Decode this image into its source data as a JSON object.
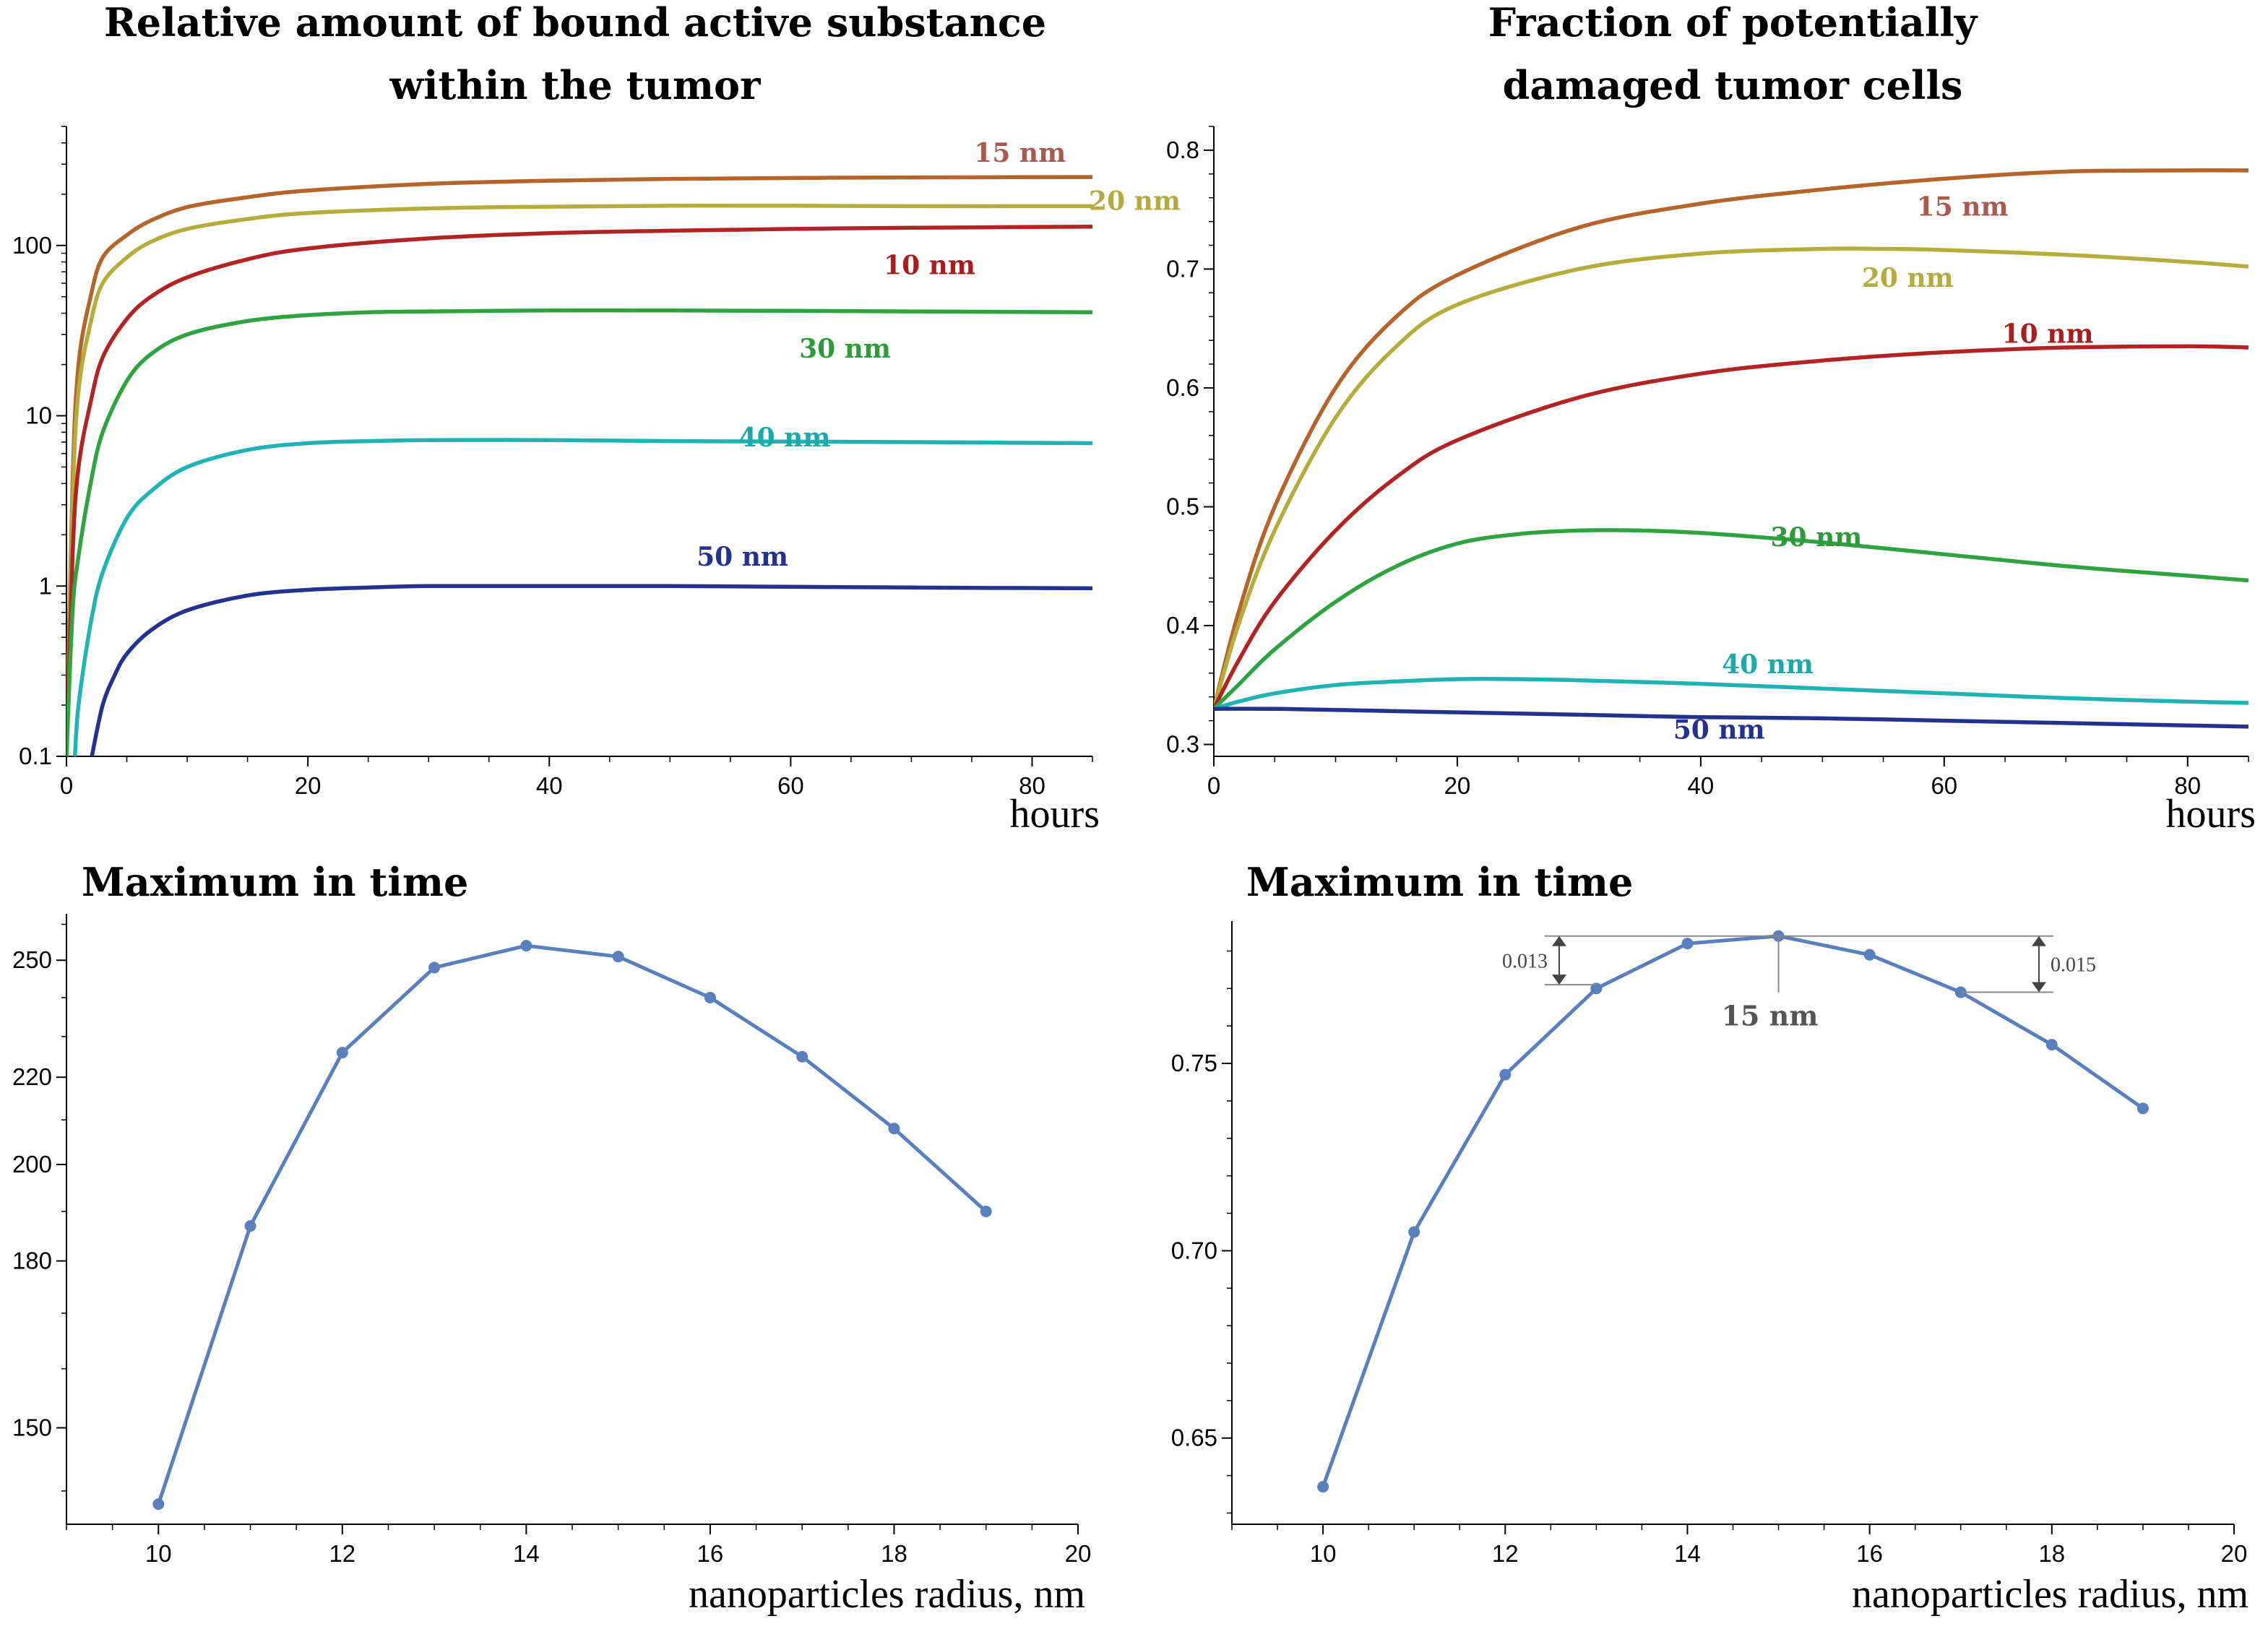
{
  "chart_data": [
    {
      "id": "p1",
      "type": "line",
      "title": [
        "Relative amount of bound active substance",
        "within the tumor"
      ],
      "xlabel": "hours",
      "ylabel": "",
      "yscale": "log",
      "xlim": [
        0,
        85
      ],
      "ylim": [
        0.1,
        500
      ],
      "xticks": [
        {
          "v": 0,
          "label": "0"
        },
        {
          "v": 20,
          "label": "20"
        },
        {
          "v": 40,
          "label": "40"
        },
        {
          "v": 60,
          "label": "60"
        },
        {
          "v": 80,
          "label": "80"
        }
      ],
      "yticks": [
        {
          "v": 0.1,
          "label": "0.1"
        },
        {
          "v": 1,
          "label": "1"
        },
        {
          "v": 10,
          "label": "10"
        },
        {
          "v": 100,
          "label": "100"
        }
      ],
      "series": [
        {
          "name": "15 nm",
          "color": "#b5652b",
          "label_color": "#a85a50",
          "x": [
            0,
            0.5,
            1,
            2,
            3,
            5,
            7,
            10,
            15,
            20,
            30,
            40,
            50,
            60,
            70,
            85
          ],
          "y": [
            0.1,
            4,
            20,
            50,
            85,
            115,
            140,
            168,
            192,
            210,
            230,
            240,
            246,
            249,
            251,
            252
          ],
          "label_x": 79,
          "label_y": 310
        },
        {
          "name": "20 nm",
          "color": "#b4ad3c",
          "label_color": "#b3aa42",
          "x": [
            0,
            0.5,
            1,
            2,
            3,
            5,
            7,
            10,
            15,
            20,
            30,
            40,
            50,
            60,
            70,
            85
          ],
          "y": [
            0.1,
            3,
            14,
            35,
            60,
            85,
            105,
            125,
            143,
            155,
            165,
            169,
            171,
            171,
            170,
            170
          ],
          "label_x": 88.5,
          "label_y": 162
        },
        {
          "name": "10 nm",
          "color": "#b22424",
          "label_color": "#a61e1e",
          "x": [
            0,
            0.5,
            1,
            2,
            3,
            5,
            7,
            10,
            15,
            20,
            30,
            40,
            50,
            60,
            70,
            85
          ],
          "y": [
            0.1,
            1.5,
            5,
            12,
            22,
            37,
            50,
            65,
            83,
            96,
            110,
            118,
            122,
            125,
            127,
            129
          ],
          "label_x": 71.5,
          "label_y": 68
        },
        {
          "name": "30 nm",
          "color": "#2ea340",
          "label_color": "#2e9a3a",
          "x": [
            0,
            0.5,
            1,
            2,
            3,
            5,
            7,
            10,
            15,
            20,
            25,
            30,
            40,
            50,
            60,
            70,
            85
          ],
          "y": [
            0.1,
            0.7,
            1.5,
            4,
            8,
            16,
            23,
            30,
            36,
            39,
            40.5,
            41,
            41.5,
            41.5,
            41.3,
            41,
            40.5
          ],
          "label_x": 64.5,
          "label_y": 22
        },
        {
          "name": "40 nm",
          "color": "#1fb3b3",
          "label_color": "#1fa8a8",
          "x": [
            0.7,
            1,
            2,
            3,
            5,
            7,
            10,
            15,
            20,
            25,
            30,
            40,
            50,
            60,
            70,
            85
          ],
          "y": [
            0.1,
            0.2,
            0.6,
            1.2,
            2.5,
            3.6,
            5,
            6.3,
            6.9,
            7.1,
            7.2,
            7.2,
            7.1,
            7.05,
            7,
            6.9
          ],
          "label_x": 59.5,
          "label_y": 6.6
        },
        {
          "name": "50 nm",
          "color": "#24328f",
          "label_color": "#24328f",
          "x": [
            2.1,
            3,
            4,
            5,
            7,
            10,
            15,
            20,
            25,
            30,
            40,
            50,
            60,
            70,
            85
          ],
          "y": [
            0.1,
            0.2,
            0.3,
            0.4,
            0.55,
            0.72,
            0.88,
            0.95,
            0.98,
            1.0,
            1.0,
            1.0,
            0.99,
            0.98,
            0.97
          ],
          "label_x": 56,
          "label_y": 1.32
        }
      ]
    },
    {
      "id": "p2",
      "type": "line",
      "title": [
        "Fraction of potentially",
        "damaged tumor cells"
      ],
      "xlabel": "hours",
      "ylabel": "",
      "xlim": [
        0,
        85
      ],
      "ylim": [
        0.29,
        0.82
      ],
      "xticks": [
        {
          "v": 0,
          "label": "0"
        },
        {
          "v": 20,
          "label": "20"
        },
        {
          "v": 40,
          "label": "40"
        },
        {
          "v": 60,
          "label": "60"
        },
        {
          "v": 80,
          "label": "80"
        }
      ],
      "yticks": [
        {
          "v": 0.3,
          "label": "0.3"
        },
        {
          "v": 0.4,
          "label": "0.4"
        },
        {
          "v": 0.5,
          "label": "0.5"
        },
        {
          "v": 0.6,
          "label": "0.6"
        },
        {
          "v": 0.7,
          "label": "0.7"
        },
        {
          "v": 0.8,
          "label": "0.8"
        }
      ],
      "series": [
        {
          "name": "15 nm",
          "color": "#b5652b",
          "label_color": "#a85a50",
          "x": [
            0,
            2,
            5,
            10,
            15,
            20,
            30,
            40,
            50,
            60,
            70,
            80,
            85
          ],
          "y": [
            0.33,
            0.41,
            0.5,
            0.6,
            0.66,
            0.695,
            0.735,
            0.755,
            0.767,
            0.776,
            0.782,
            0.783,
            0.783
          ],
          "label_x": 61.5,
          "label_y": 0.745
        },
        {
          "name": "20 nm",
          "color": "#b4ad3c",
          "label_color": "#b3aa42",
          "x": [
            0,
            2,
            5,
            10,
            15,
            20,
            30,
            40,
            50,
            55,
            60,
            70,
            80,
            85
          ],
          "y": [
            0.33,
            0.4,
            0.48,
            0.575,
            0.635,
            0.67,
            0.7,
            0.713,
            0.717,
            0.717,
            0.716,
            0.712,
            0.706,
            0.702
          ],
          "label_x": 57,
          "label_y": 0.685
        },
        {
          "name": "10 nm",
          "color": "#b22424",
          "label_color": "#a61e1e",
          "x": [
            0,
            2,
            5,
            10,
            15,
            20,
            30,
            40,
            50,
            60,
            70,
            80,
            85
          ],
          "y": [
            0.33,
            0.37,
            0.42,
            0.48,
            0.525,
            0.556,
            0.592,
            0.612,
            0.623,
            0.63,
            0.634,
            0.635,
            0.634
          ],
          "label_x": 68.5,
          "label_y": 0.638
        },
        {
          "name": "30 nm",
          "color": "#2ea340",
          "label_color": "#2e9a3a",
          "x": [
            0,
            2,
            5,
            10,
            15,
            20,
            25,
            30,
            35,
            40,
            50,
            60,
            70,
            80,
            85
          ],
          "y": [
            0.33,
            0.35,
            0.38,
            0.42,
            0.45,
            0.469,
            0.477,
            0.48,
            0.48,
            0.478,
            0.47,
            0.46,
            0.45,
            0.442,
            0.438
          ],
          "label_x": 49.5,
          "label_y": 0.467
        },
        {
          "name": "40 nm",
          "color": "#1fb3b3",
          "label_color": "#1fa8a8",
          "x": [
            0,
            2,
            5,
            10,
            15,
            20,
            25,
            30,
            40,
            50,
            60,
            70,
            80,
            85
          ],
          "y": [
            0.33,
            0.336,
            0.343,
            0.35,
            0.353,
            0.355,
            0.355,
            0.354,
            0.351,
            0.347,
            0.343,
            0.339,
            0.336,
            0.335
          ],
          "label_x": 45.5,
          "label_y": 0.36
        },
        {
          "name": "50 nm",
          "color": "#24328f",
          "label_color": "#24328f",
          "x": [
            0,
            5,
            10,
            20,
            30,
            40,
            50,
            60,
            70,
            80,
            85
          ],
          "y": [
            0.33,
            0.33,
            0.329,
            0.327,
            0.325,
            0.323,
            0.322,
            0.32,
            0.318,
            0.316,
            0.315
          ],
          "label_x": 41.5,
          "label_y": 0.305
        }
      ]
    },
    {
      "id": "p3",
      "type": "line",
      "title": [
        "Maximum in time"
      ],
      "title_align": "left",
      "xlabel": "nanoparticles radius, nm",
      "ylabel": "",
      "yscale": "log",
      "xlim": [
        9,
        20
      ],
      "ylim": [
        135,
        263
      ],
      "xticks": [
        {
          "v": 10,
          "label": "10"
        },
        {
          "v": 12,
          "label": "12"
        },
        {
          "v": 14,
          "label": "14"
        },
        {
          "v": 16,
          "label": "16"
        },
        {
          "v": 18,
          "label": "18"
        },
        {
          "v": 20,
          "label": "20"
        }
      ],
      "yticks": [
        {
          "v": 150,
          "label": "150"
        },
        {
          "v": 180,
          "label": "180"
        },
        {
          "v": 200,
          "label": "200"
        },
        {
          "v": 220,
          "label": "220"
        },
        {
          "v": 250,
          "label": "250"
        }
      ],
      "series": [
        {
          "name": "maximum",
          "color": "#5a7fbd",
          "x": [
            10,
            11,
            12,
            13,
            14,
            15,
            16,
            17,
            18,
            19
          ],
          "y": [
            138,
            187,
            226,
            248,
            254,
            251,
            240,
            225,
            208,
            190
          ]
        }
      ]
    },
    {
      "id": "p4",
      "type": "line",
      "title": [
        "Maximum in time"
      ],
      "title_align": "left",
      "xlabel": "nanoparticles radius, nm",
      "ylabel": "",
      "xlim": [
        9,
        20
      ],
      "ylim": [
        0.627,
        0.788
      ],
      "xticks": [
        {
          "v": 10,
          "label": "10"
        },
        {
          "v": 12,
          "label": "12"
        },
        {
          "v": 14,
          "label": "14"
        },
        {
          "v": 16,
          "label": "16"
        },
        {
          "v": 18,
          "label": "18"
        },
        {
          "v": 20,
          "label": "20"
        }
      ],
      "yticks": [
        {
          "v": 0.65,
          "label": "0.65"
        },
        {
          "v": 0.7,
          "label": "0.70"
        },
        {
          "v": 0.75,
          "label": "0.75"
        }
      ],
      "series": [
        {
          "name": "maximum",
          "color": "#5a7fbd",
          "x": [
            10,
            11,
            12,
            13,
            14,
            15,
            16,
            17,
            18,
            19
          ],
          "y": [
            0.637,
            0.705,
            0.747,
            0.77,
            0.782,
            0.784,
            0.779,
            0.769,
            0.755,
            0.738
          ]
        }
      ],
      "annotations": {
        "peak_label": "15 nm",
        "peak_x": 15,
        "peak_y": 0.784,
        "left_diff": "0.013",
        "left_x": 13,
        "left_y": 0.771,
        "right_diff": "0.015",
        "right_x": 17,
        "right_y": 0.769
      }
    }
  ]
}
